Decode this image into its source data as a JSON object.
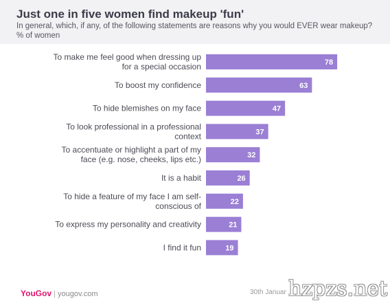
{
  "header": {
    "title": "Just one in five women find makeup 'fun'",
    "subtitle": "In general, which, if any, of the following statements are reasons why you would EVER wear makeup? % of women"
  },
  "chart_data": {
    "type": "bar",
    "orientation": "horizontal",
    "title": "Just one in five women find makeup 'fun'",
    "categories": [
      [
        "To make me feel good when dressing up",
        "for a special occasion"
      ],
      [
        "To boost my confidence"
      ],
      [
        "To hide blemishes on my face"
      ],
      [
        "To look professional in a professional",
        "context"
      ],
      [
        "To accentuate or highlight a part of my",
        "face (e.g. nose, cheeks, lips etc.)"
      ],
      [
        "It is a habit"
      ],
      [
        "To hide a feature of my face I am self-",
        "conscious of"
      ],
      [
        "To express my personality and creativity"
      ],
      [
        "I find it fun"
      ]
    ],
    "values": [
      78,
      63,
      47,
      37,
      32,
      26,
      22,
      21,
      19
    ],
    "bar_color": "#9b7fd4",
    "data_labels": true,
    "grid": false,
    "legend": "none"
  },
  "footer": {
    "brand": "YouGov",
    "separator": "|",
    "site": "yougov.com",
    "date_partial": "30th Januar"
  },
  "watermark": "hzpzs.net"
}
